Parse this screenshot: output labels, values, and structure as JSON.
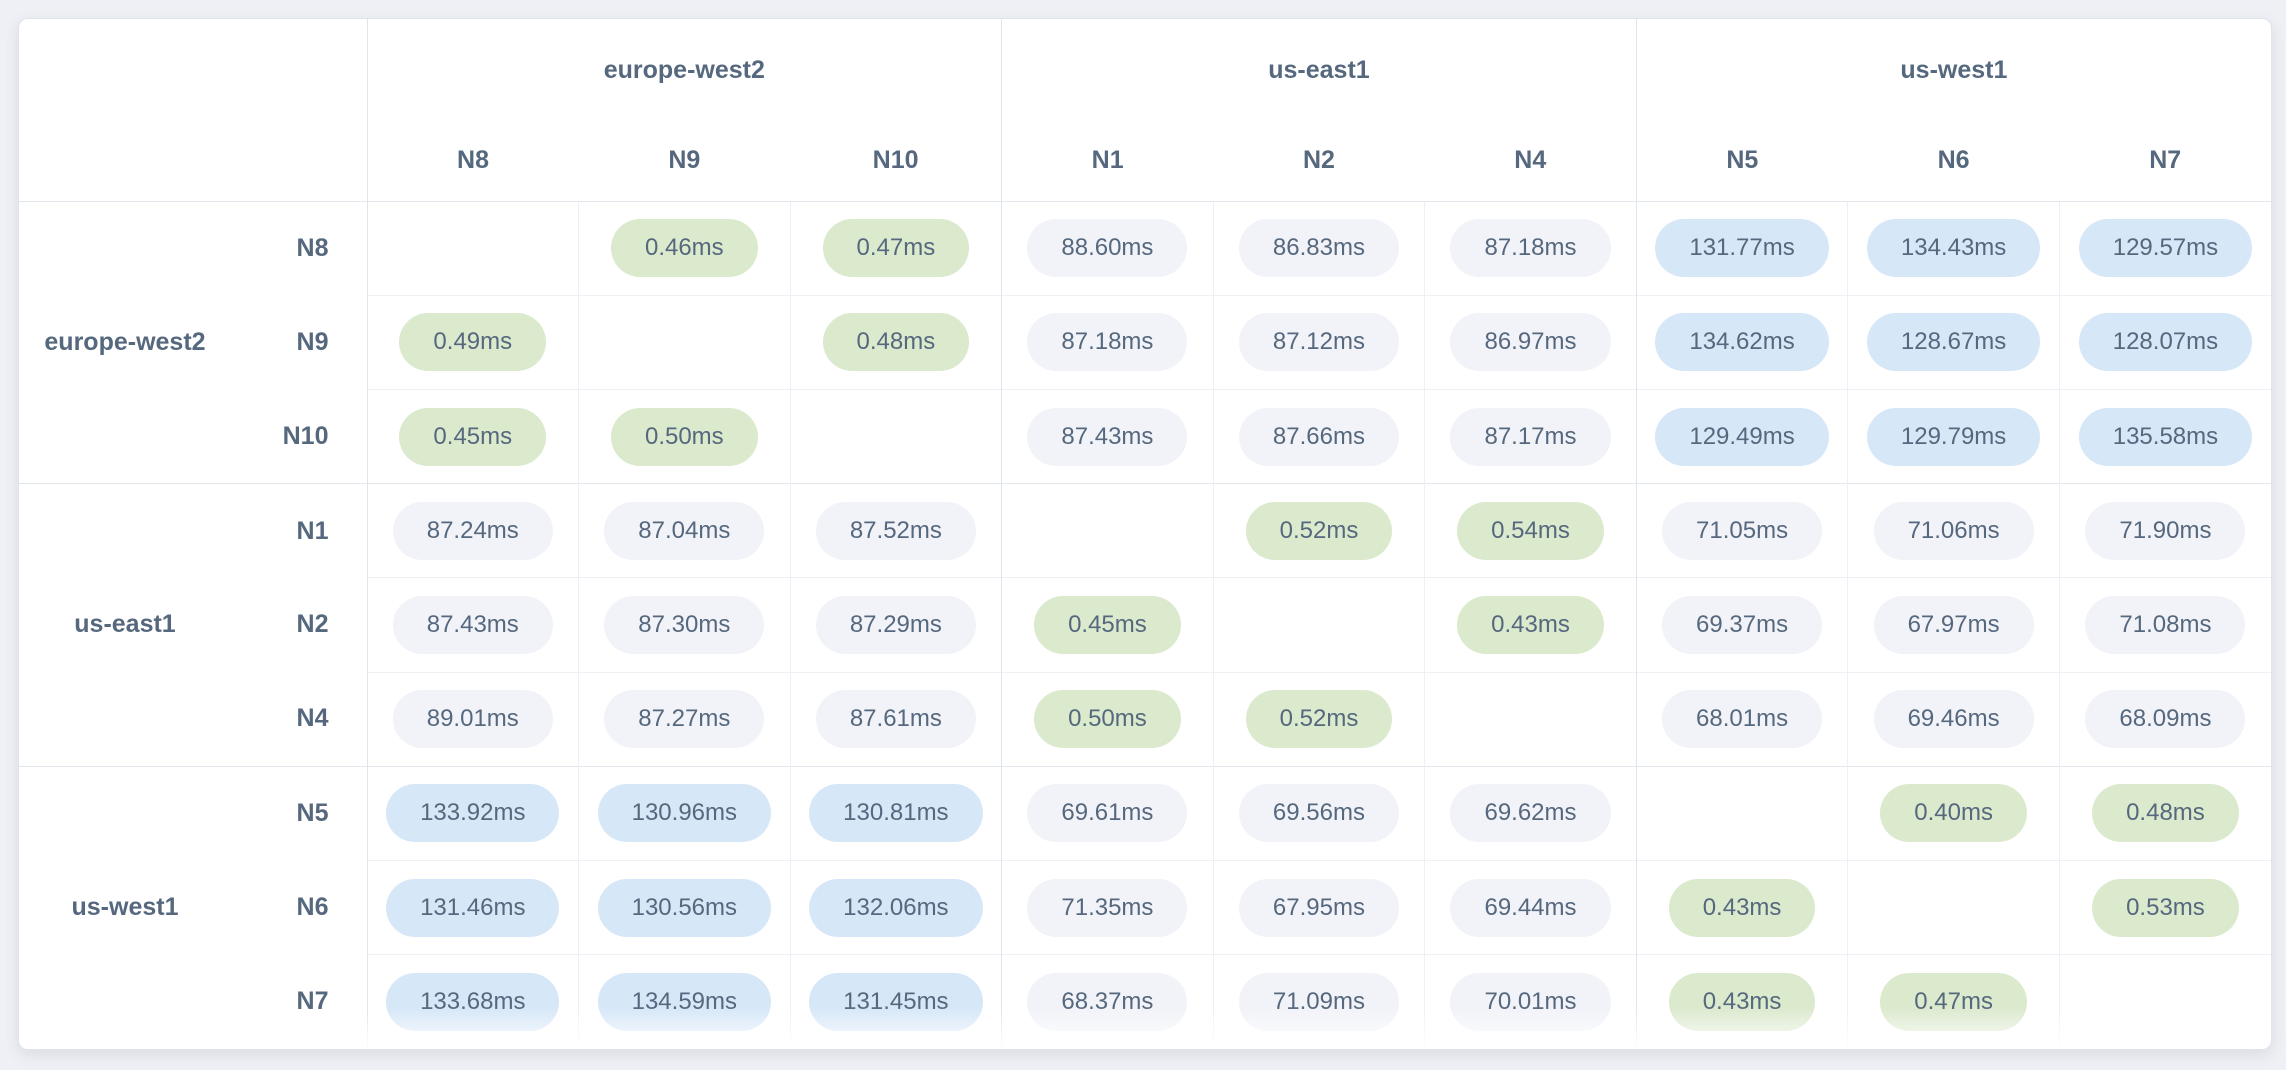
{
  "colors": {
    "page_bg": "#eef0f5",
    "card_bg": "#ffffff",
    "text": "#56687e",
    "pill_low": "#dbe9cd",
    "pill_mid": "#f1f3f8",
    "pill_high": "#d6e7f8",
    "border_light": "#edf0f5",
    "border_group": "#dfe4ec",
    "border_sep": "#e2e7ee"
  },
  "matrix": {
    "unit": "ms",
    "thresholds": {
      "low_below_ms": 1,
      "high_above_ms": 100
    },
    "column_groups": [
      {
        "region": "europe-west2",
        "nodes": [
          "N8",
          "N9",
          "N10"
        ]
      },
      {
        "region": "us-east1",
        "nodes": [
          "N1",
          "N2",
          "N4"
        ]
      },
      {
        "region": "us-west1",
        "nodes": [
          "N5",
          "N6",
          "N7"
        ]
      }
    ],
    "row_groups": [
      {
        "region": "europe-west2",
        "rows": [
          {
            "node": "N8",
            "values": [
              null,
              "0.46ms",
              "0.47ms",
              "88.60ms",
              "86.83ms",
              "87.18ms",
              "131.77ms",
              "134.43ms",
              "129.57ms"
            ]
          },
          {
            "node": "N9",
            "values": [
              "0.49ms",
              null,
              "0.48ms",
              "87.18ms",
              "87.12ms",
              "86.97ms",
              "134.62ms",
              "128.67ms",
              "128.07ms"
            ]
          },
          {
            "node": "N10",
            "values": [
              "0.45ms",
              "0.50ms",
              null,
              "87.43ms",
              "87.66ms",
              "87.17ms",
              "129.49ms",
              "129.79ms",
              "135.58ms"
            ]
          }
        ]
      },
      {
        "region": "us-east1",
        "rows": [
          {
            "node": "N1",
            "values": [
              "87.24ms",
              "87.04ms",
              "87.52ms",
              null,
              "0.52ms",
              "0.54ms",
              "71.05ms",
              "71.06ms",
              "71.90ms"
            ]
          },
          {
            "node": "N2",
            "values": [
              "87.43ms",
              "87.30ms",
              "87.29ms",
              "0.45ms",
              null,
              "0.43ms",
              "69.37ms",
              "67.97ms",
              "71.08ms"
            ]
          },
          {
            "node": "N4",
            "values": [
              "89.01ms",
              "87.27ms",
              "87.61ms",
              "0.50ms",
              "0.52ms",
              null,
              "68.01ms",
              "69.46ms",
              "68.09ms"
            ]
          }
        ]
      },
      {
        "region": "us-west1",
        "rows": [
          {
            "node": "N5",
            "values": [
              "133.92ms",
              "130.96ms",
              "130.81ms",
              "69.61ms",
              "69.56ms",
              "69.62ms",
              null,
              "0.40ms",
              "0.48ms"
            ]
          },
          {
            "node": "N6",
            "values": [
              "131.46ms",
              "130.56ms",
              "132.06ms",
              "71.35ms",
              "67.95ms",
              "69.44ms",
              "0.43ms",
              null,
              "0.53ms"
            ]
          },
          {
            "node": "N7",
            "values": [
              "133.68ms",
              "134.59ms",
              "131.45ms",
              "68.37ms",
              "71.09ms",
              "70.01ms",
              "0.43ms",
              "0.47ms",
              null
            ]
          }
        ]
      }
    ]
  }
}
